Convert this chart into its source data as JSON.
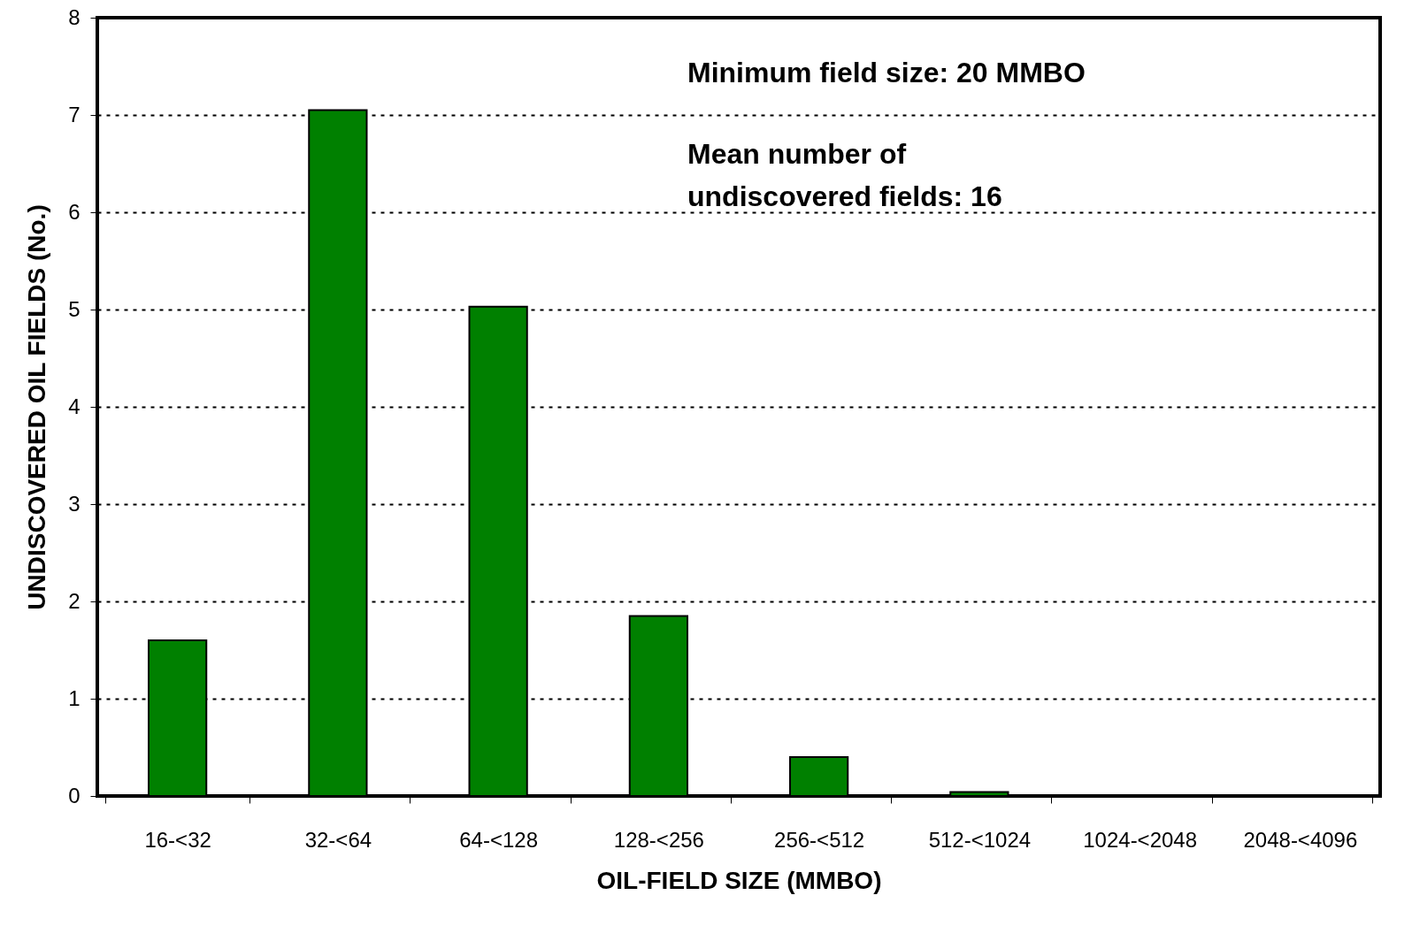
{
  "chart_data": {
    "type": "bar",
    "xlabel": "OIL-FIELD SIZE (MMBO)",
    "ylabel": "UNDISCOVERED OIL FIELDS (No.)",
    "categories": [
      "16-<32",
      "32-<64",
      "64-<128",
      "128-<256",
      "256-<512",
      "512-<1024",
      "1024-<2048",
      "2048-<4096"
    ],
    "values": [
      1.6,
      7.05,
      5.03,
      1.85,
      0.4,
      0.04,
      0,
      0
    ],
    "color": "#008000",
    "ylim": [
      0,
      8
    ],
    "yticks": [
      0,
      1,
      2,
      3,
      4,
      5,
      6,
      7,
      8
    ],
    "grid": "y",
    "annotations": [
      "Minimum field size: 20 MMBO",
      "Mean number of\nundiscovered fields: 16"
    ]
  }
}
